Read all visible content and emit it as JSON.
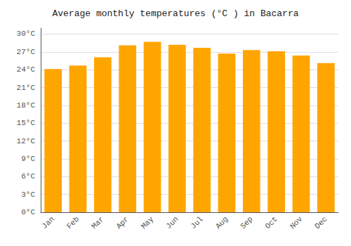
{
  "chart_data": {
    "type": "bar",
    "title": "Average monthly temperatures (°C ) in Bacarra",
    "categories": [
      "Jan",
      "Feb",
      "Mar",
      "Apr",
      "May",
      "Jun",
      "Jul",
      "Aug",
      "Sep",
      "Oct",
      "Nov",
      "Dec"
    ],
    "values": [
      24.1,
      24.7,
      26.1,
      28.1,
      28.7,
      28.2,
      27.7,
      26.7,
      27.3,
      27.1,
      26.4,
      25.1
    ],
    "color": "#FFA500",
    "ylim": [
      0,
      31
    ],
    "yticks": [
      {
        "value": 0,
        "label": "0°C"
      },
      {
        "value": 3,
        "label": "3°C"
      },
      {
        "value": 6,
        "label": "6°C"
      },
      {
        "value": 9,
        "label": "9°C"
      },
      {
        "value": 12,
        "label": "12°C"
      },
      {
        "value": 15,
        "label": "15°C"
      },
      {
        "value": 18,
        "label": "18°C"
      },
      {
        "value": 21,
        "label": "21°C"
      },
      {
        "value": 24,
        "label": "24°C"
      },
      {
        "value": 27,
        "label": "27°C"
      },
      {
        "value": 30,
        "label": "30°C"
      }
    ],
    "grid": true
  }
}
